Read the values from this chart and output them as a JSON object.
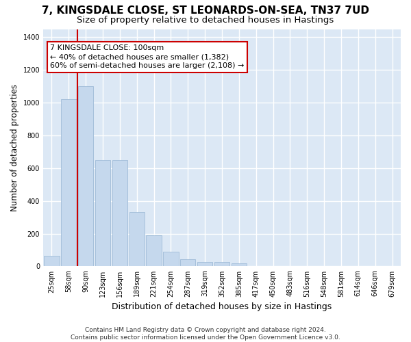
{
  "title": "7, KINGSDALE CLOSE, ST LEONARDS-ON-SEA, TN37 7UD",
  "subtitle": "Size of property relative to detached houses in Hastings",
  "xlabel": "Distribution of detached houses by size in Hastings",
  "ylabel": "Number of detached properties",
  "categories": [
    "25sqm",
    "58sqm",
    "90sqm",
    "123sqm",
    "156sqm",
    "189sqm",
    "221sqm",
    "254sqm",
    "287sqm",
    "319sqm",
    "352sqm",
    "385sqm",
    "417sqm",
    "450sqm",
    "483sqm",
    "516sqm",
    "548sqm",
    "581sqm",
    "614sqm",
    "646sqm",
    "679sqm"
  ],
  "values": [
    65,
    1020,
    1100,
    650,
    650,
    330,
    190,
    90,
    45,
    28,
    25,
    18,
    0,
    0,
    0,
    0,
    0,
    0,
    0,
    0,
    0
  ],
  "bar_color": "#c5d8ed",
  "bar_edge_color": "#a0bcd8",
  "vline_x_index": 2,
  "vline_color": "#cc0000",
  "annotation_line1": "7 KINGSDALE CLOSE: 100sqm",
  "annotation_line2": "← 40% of detached houses are smaller (1,382)",
  "annotation_line3": "60% of semi-detached houses are larger (2,108) →",
  "annotation_box_facecolor": "#ffffff",
  "annotation_box_edgecolor": "#cc0000",
  "ylim": [
    0,
    1450
  ],
  "yticks": [
    0,
    200,
    400,
    600,
    800,
    1000,
    1200,
    1400
  ],
  "plot_bg_color": "#dce8f5",
  "fig_bg_color": "#ffffff",
  "grid_color": "#ffffff",
  "footer_line1": "Contains HM Land Registry data © Crown copyright and database right 2024.",
  "footer_line2": "Contains public sector information licensed under the Open Government Licence v3.0.",
  "title_fontsize": 11,
  "subtitle_fontsize": 9.5,
  "xlabel_fontsize": 9,
  "ylabel_fontsize": 8.5,
  "tick_fontsize": 7,
  "annotation_fontsize": 8,
  "footer_fontsize": 6.5
}
